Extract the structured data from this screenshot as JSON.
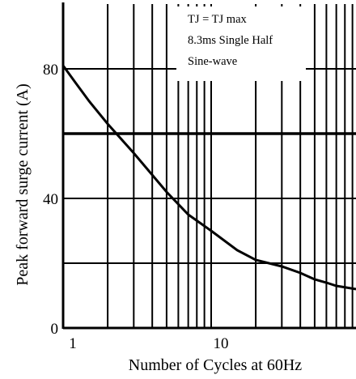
{
  "chart_data": {
    "type": "line",
    "title": "",
    "xlabel": "Number of Cycles at 60Hz",
    "ylabel": "Peak forward surge current (A)",
    "x_scale": "log",
    "xlim": [
      1,
      100
    ],
    "ylim": [
      0,
      100
    ],
    "grid": true,
    "x_ticks": [
      {
        "value": 1,
        "label": "1"
      },
      {
        "value": 10,
        "label": "10"
      }
    ],
    "y_ticks": [
      {
        "value": 0,
        "label": "0"
      },
      {
        "value": 40,
        "label": "40"
      },
      {
        "value": 80,
        "label": "80"
      }
    ],
    "annotation_lines": [
      "TJ = TJ max",
      "8.3ms Single Half",
      "Sine-wave"
    ],
    "series": [
      {
        "x": [
          1,
          1.2,
          1.5,
          2,
          3,
          5,
          7,
          10,
          15,
          20,
          30,
          40,
          50,
          60,
          70,
          100
        ],
        "y": [
          81,
          76,
          70,
          63,
          54,
          42,
          35,
          30,
          24,
          21,
          19,
          17,
          15,
          14,
          13,
          12
        ]
      }
    ],
    "reference_line": {
      "y": 60
    }
  }
}
